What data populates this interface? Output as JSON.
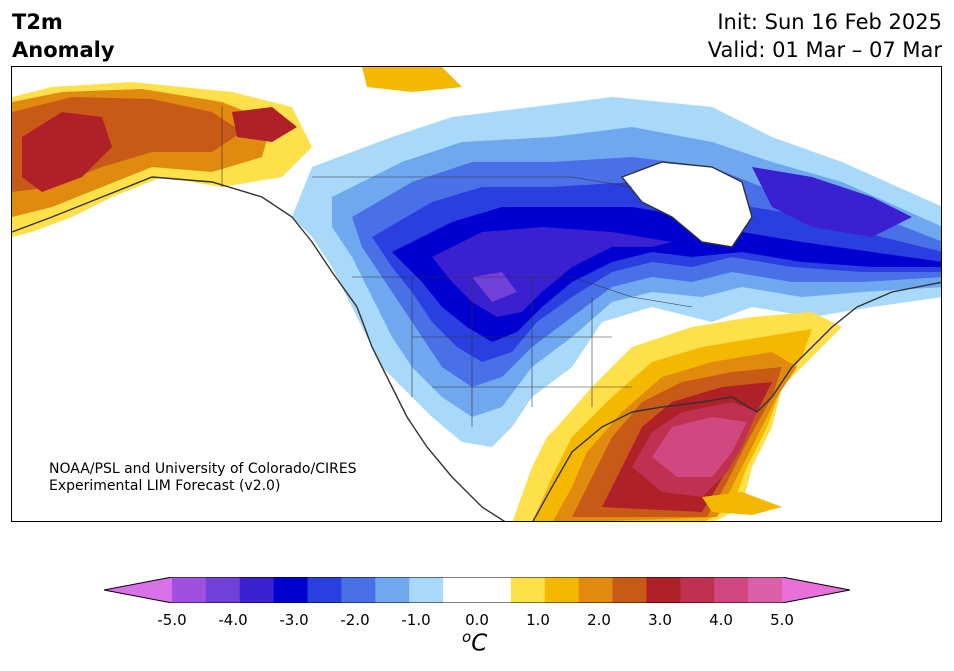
{
  "header": {
    "title_line1": "T2m",
    "title_line2": "Anomaly",
    "init": "Init: Sun 16 Feb 2025",
    "valid": "Valid: 01 Mar – 07 Mar"
  },
  "credit": {
    "line1": "NOAA/PSL and University of Colorado/CIRES",
    "line2": "Experimental LIM Forecast (v2.0)"
  },
  "colorbar": {
    "unit_base": "C",
    "unit_sup": "o",
    "ticks": [
      "-5.0",
      "-4.0",
      "-3.0",
      "-2.0",
      "-1.0",
      "0.0",
      "1.0",
      "2.0",
      "3.0",
      "4.0",
      "5.0"
    ],
    "colors": [
      "#a050e0",
      "#7040d8",
      "#3a20d0",
      "#0000d0",
      "#2a3fe0",
      "#4a70e8",
      "#70a8f0",
      "#a8d8fa",
      "#ffffff",
      "#ffffff",
      "#fde04a",
      "#f5b800",
      "#e08a10",
      "#c85a18",
      "#b02028",
      "#c03050",
      "#d04880",
      "#dc60a8"
    ],
    "under_color": "#d870e8",
    "over_color": "#e870d8"
  },
  "map": {
    "region": "North America",
    "coastline_color": "#333333"
  }
}
